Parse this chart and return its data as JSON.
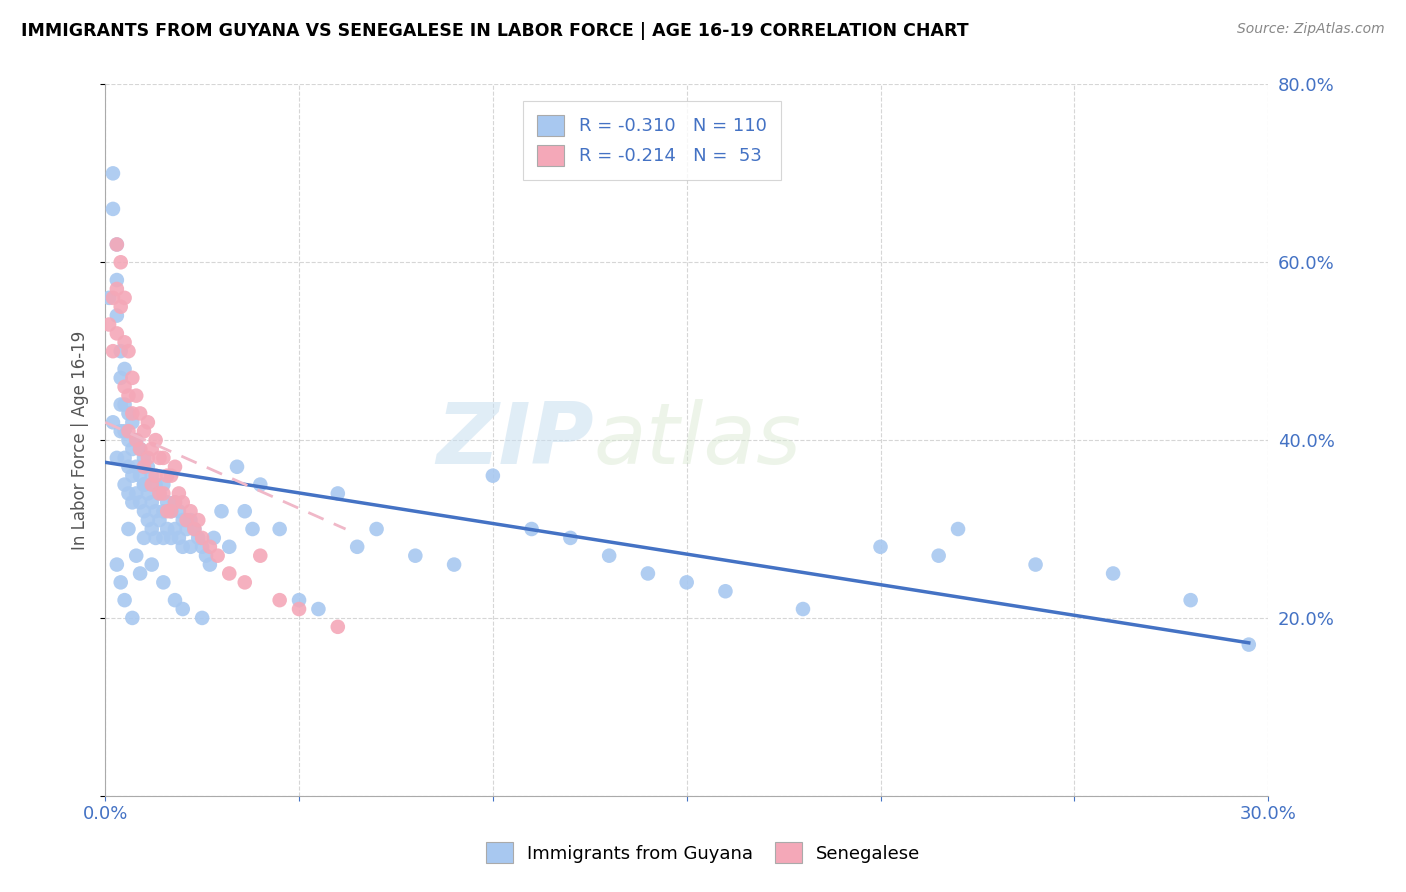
{
  "title": "IMMIGRANTS FROM GUYANA VS SENEGALESE IN LABOR FORCE | AGE 16-19 CORRELATION CHART",
  "source": "Source: ZipAtlas.com",
  "ylabel": "In Labor Force | Age 16-19",
  "xlim": [
    0.0,
    0.3
  ],
  "ylim": [
    0.0,
    0.8
  ],
  "guyana_color": "#a8c8f0",
  "senegalese_color": "#f4a8b8",
  "trend_guyana_color": "#4472c4",
  "trend_senegalese_color": "#f0b8c8",
  "watermark_zip": "ZIP",
  "watermark_atlas": "atlas",
  "legend_R_guyana": "-0.310",
  "legend_N_guyana": "110",
  "legend_R_senegalese": "-0.214",
  "legend_N_senegalese": "53",
  "guyana_x": [
    0.001,
    0.002,
    0.002,
    0.003,
    0.003,
    0.003,
    0.004,
    0.004,
    0.004,
    0.004,
    0.005,
    0.005,
    0.005,
    0.005,
    0.005,
    0.006,
    0.006,
    0.006,
    0.006,
    0.007,
    0.007,
    0.007,
    0.007,
    0.008,
    0.008,
    0.008,
    0.009,
    0.009,
    0.009,
    0.01,
    0.01,
    0.01,
    0.01,
    0.011,
    0.011,
    0.011,
    0.012,
    0.012,
    0.012,
    0.013,
    0.013,
    0.013,
    0.014,
    0.014,
    0.015,
    0.015,
    0.015,
    0.016,
    0.016,
    0.017,
    0.017,
    0.018,
    0.018,
    0.019,
    0.019,
    0.02,
    0.02,
    0.021,
    0.022,
    0.022,
    0.023,
    0.024,
    0.025,
    0.026,
    0.027,
    0.028,
    0.03,
    0.032,
    0.034,
    0.036,
    0.038,
    0.04,
    0.045,
    0.05,
    0.055,
    0.06,
    0.065,
    0.07,
    0.08,
    0.09,
    0.1,
    0.11,
    0.12,
    0.13,
    0.14,
    0.15,
    0.16,
    0.18,
    0.2,
    0.22,
    0.24,
    0.26,
    0.28,
    0.295,
    0.003,
    0.004,
    0.005,
    0.006,
    0.007,
    0.008,
    0.009,
    0.01,
    0.012,
    0.015,
    0.018,
    0.02,
    0.025,
    0.215,
    0.002,
    0.003
  ],
  "guyana_y": [
    0.56,
    0.7,
    0.66,
    0.62,
    0.58,
    0.54,
    0.5,
    0.47,
    0.44,
    0.41,
    0.48,
    0.44,
    0.41,
    0.38,
    0.35,
    0.43,
    0.4,
    0.37,
    0.34,
    0.42,
    0.39,
    0.36,
    0.33,
    0.4,
    0.37,
    0.34,
    0.39,
    0.36,
    0.33,
    0.38,
    0.35,
    0.32,
    0.29,
    0.37,
    0.34,
    0.31,
    0.36,
    0.33,
    0.3,
    0.35,
    0.32,
    0.29,
    0.34,
    0.31,
    0.35,
    0.32,
    0.29,
    0.33,
    0.3,
    0.32,
    0.29,
    0.33,
    0.3,
    0.32,
    0.29,
    0.31,
    0.28,
    0.3,
    0.31,
    0.28,
    0.3,
    0.29,
    0.28,
    0.27,
    0.26,
    0.29,
    0.32,
    0.28,
    0.37,
    0.32,
    0.3,
    0.35,
    0.3,
    0.22,
    0.21,
    0.34,
    0.28,
    0.3,
    0.27,
    0.26,
    0.36,
    0.3,
    0.29,
    0.27,
    0.25,
    0.24,
    0.23,
    0.21,
    0.28,
    0.3,
    0.26,
    0.25,
    0.22,
    0.17,
    0.26,
    0.24,
    0.22,
    0.3,
    0.2,
    0.27,
    0.25,
    0.35,
    0.26,
    0.24,
    0.22,
    0.21,
    0.2,
    0.27,
    0.42,
    0.38
  ],
  "senegalese_x": [
    0.001,
    0.002,
    0.002,
    0.003,
    0.003,
    0.003,
    0.004,
    0.004,
    0.005,
    0.005,
    0.005,
    0.006,
    0.006,
    0.006,
    0.007,
    0.007,
    0.008,
    0.008,
    0.009,
    0.009,
    0.01,
    0.01,
    0.011,
    0.011,
    0.012,
    0.012,
    0.013,
    0.013,
    0.014,
    0.014,
    0.015,
    0.015,
    0.016,
    0.016,
    0.017,
    0.017,
    0.018,
    0.018,
    0.019,
    0.02,
    0.021,
    0.022,
    0.023,
    0.024,
    0.025,
    0.027,
    0.029,
    0.032,
    0.036,
    0.04,
    0.045,
    0.05,
    0.06
  ],
  "senegalese_y": [
    0.53,
    0.56,
    0.5,
    0.62,
    0.57,
    0.52,
    0.6,
    0.55,
    0.56,
    0.51,
    0.46,
    0.5,
    0.45,
    0.41,
    0.47,
    0.43,
    0.45,
    0.4,
    0.43,
    0.39,
    0.41,
    0.37,
    0.42,
    0.38,
    0.39,
    0.35,
    0.4,
    0.36,
    0.38,
    0.34,
    0.38,
    0.34,
    0.36,
    0.32,
    0.36,
    0.32,
    0.37,
    0.33,
    0.34,
    0.33,
    0.31,
    0.32,
    0.3,
    0.31,
    0.29,
    0.28,
    0.27,
    0.25,
    0.24,
    0.27,
    0.22,
    0.21,
    0.19
  ],
  "trend_guyana_x0": 0.0,
  "trend_guyana_y0": 0.375,
  "trend_guyana_x1": 0.295,
  "trend_guyana_y1": 0.172,
  "trend_sene_x0": 0.0,
  "trend_sene_y0": 0.42,
  "trend_sene_x1": 0.062,
  "trend_sene_y1": 0.3
}
